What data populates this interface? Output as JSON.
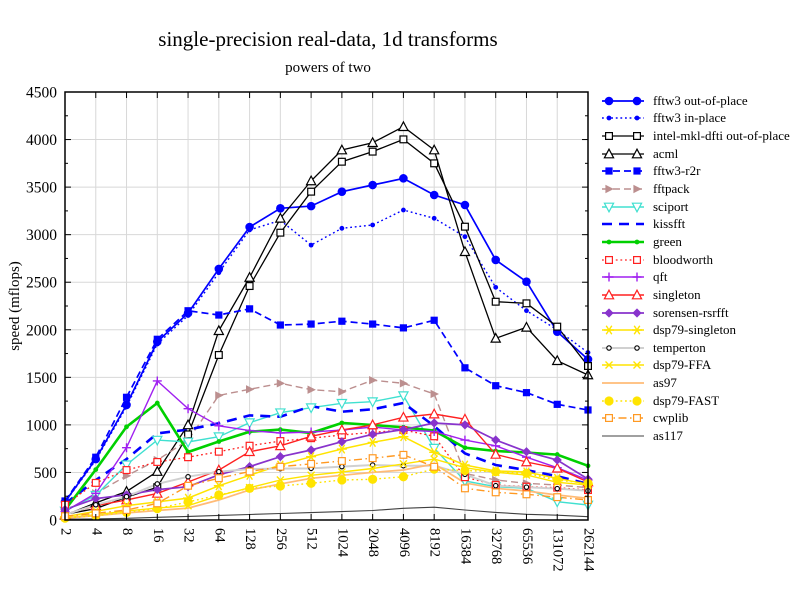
{
  "chart_data": {
    "type": "line",
    "title": "single-precision real-data, 1d transforms",
    "subtitle": "powers of two",
    "ylabel": "speed (mflops)",
    "x_categories": [
      "2",
      "4",
      "8",
      "16",
      "32",
      "64",
      "128",
      "256",
      "512",
      "1024",
      "2048",
      "4096",
      "8192",
      "16384",
      "32768",
      "65536",
      "131072",
      "262144"
    ],
    "ylim": [
      0,
      4500
    ],
    "ytick_step": 500,
    "y_minor_step": 250,
    "grid": true,
    "grid_color": "#d8d8d8",
    "legend_position": "right",
    "series": [
      {
        "name": "fftw3 out-of-place",
        "color": "#0000ff",
        "line": "solid",
        "width": 1.7,
        "marker": "circle",
        "values": [
          190,
          640,
          1210,
          1875,
          2175,
          2640,
          3080,
          3277,
          3300,
          3452,
          3522,
          3592,
          3417,
          3312,
          2734,
          2506,
          1980,
          1689
        ]
      },
      {
        "name": "fftw3 in-place",
        "color": "#0000ff",
        "line": "dotted",
        "width": 1.4,
        "marker": "circle-small",
        "values": [
          185,
          630,
          1190,
          1850,
          2150,
          2600,
          3050,
          3150,
          2890,
          3067,
          3102,
          3259,
          3172,
          2979,
          2446,
          2201,
          2000,
          1760
        ]
      },
      {
        "name": "intel-mkl-dfti out-of-place",
        "color": "#000000",
        "line": "solid",
        "width": 1.3,
        "marker": "square-open",
        "values": [
          60,
          120,
          240,
          345,
          900,
          1735,
          2460,
          3021,
          3452,
          3767,
          3873,
          4002,
          3750,
          3084,
          2295,
          2278,
          2033,
          1619
        ]
      },
      {
        "name": "acml",
        "color": "#000000",
        "line": "solid",
        "width": 1.3,
        "marker": "triangle-up-open",
        "values": [
          50,
          180,
          300,
          510,
          1000,
          1990,
          2550,
          3172,
          3565,
          3890,
          3967,
          4135,
          3890,
          2821,
          1910,
          2026,
          1675,
          1525
        ]
      },
      {
        "name": "fftw3-r2r",
        "color": "#0000ff",
        "line": "dashed",
        "width": 1.7,
        "marker": "square-filled",
        "values": [
          200,
          660,
          1290,
          1900,
          2200,
          2155,
          2220,
          2050,
          2060,
          2090,
          2060,
          2020,
          2100,
          1600,
          1412,
          1339,
          1216,
          1157
        ]
      },
      {
        "name": "fftpack",
        "color": "#bc8f8f",
        "line": "dashed",
        "width": 1.4,
        "marker": "triangle-right-filled",
        "values": [
          90,
          280,
          465,
          630,
          840,
          1310,
          1374,
          1437,
          1370,
          1349,
          1470,
          1437,
          1325,
          490,
          421,
          386,
          368,
          340
        ]
      },
      {
        "name": "sciport",
        "color": "#40e0d0",
        "line": "solid",
        "width": 1.4,
        "marker": "triangle-down-open",
        "values": [
          95,
          260,
          580,
          840,
          820,
          876,
          1023,
          1128,
          1181,
          1227,
          1244,
          1307,
          755,
          410,
          350,
          333,
          192,
          158
        ]
      },
      {
        "name": "kissfft",
        "color": "#0000ff",
        "line": "dashed-bold",
        "width": 2.6,
        "marker": "none",
        "values": [
          170,
          420,
          640,
          910,
          950,
          1017,
          1100,
          1086,
          1198,
          1139,
          1164,
          1230,
          988,
          700,
          578,
          525,
          460,
          380
        ]
      },
      {
        "name": "green",
        "color": "#00d000",
        "line": "solid",
        "width": 2.6,
        "marker": "circle-small",
        "values": [
          105,
          530,
          980,
          1230,
          715,
          825,
          928,
          950,
          915,
          1020,
          999,
          975,
          939,
          760,
          725,
          710,
          688,
          570
        ]
      },
      {
        "name": "bloodworth",
        "color": "#ff2020",
        "line": "dotted",
        "width": 1.3,
        "marker": "square-open",
        "values": [
          160,
          390,
          525,
          610,
          660,
          718,
          781,
          830,
          860,
          894,
          922,
          946,
          880,
          450,
          368,
          350,
          340,
          315
        ]
      },
      {
        "name": "qft",
        "color": "#a020f0",
        "line": "solid",
        "width": 1.4,
        "marker": "plus",
        "values": [
          90,
          280,
          760,
          1462,
          1170,
          990,
          940,
          915,
          925,
          945,
          978,
          945,
          930,
          840,
          780,
          660,
          550,
          420
        ]
      },
      {
        "name": "singleton",
        "color": "#ff2020",
        "line": "solid",
        "width": 1.4,
        "marker": "triangle-up-open",
        "values": [
          60,
          150,
          210,
          280,
          400,
          525,
          718,
          780,
          880,
          946,
          1000,
          1080,
          1114,
          1060,
          690,
          610,
          545,
          400
        ]
      },
      {
        "name": "sorensen-rsrfft",
        "color": "#8833cc",
        "line": "solid",
        "width": 1.7,
        "marker": "diamond-filled",
        "values": [
          110,
          225,
          265,
          320,
          350,
          475,
          561,
          666,
          736,
          823,
          901,
          950,
          1020,
          1000,
          841,
          718,
          631,
          430
        ]
      },
      {
        "name": "dsp79-singleton",
        "color": "#ffe400",
        "line": "solid",
        "width": 1.5,
        "marker": "asterisk",
        "values": [
          35,
          90,
          150,
          190,
          230,
          360,
          470,
          578,
          666,
          746,
          816,
          876,
          712,
          578,
          515,
          505,
          438,
          375
        ]
      },
      {
        "name": "temperton",
        "color": "#d0d0d0",
        "line": "solid",
        "width": 2.0,
        "marker": "circle-open-tiny",
        "marker_color": "#000000",
        "values": [
          55,
          160,
          245,
          380,
          455,
          508,
          536,
          540,
          543,
          561,
          578,
          571,
          570,
          480,
          361,
          345,
          330,
          308
        ]
      },
      {
        "name": "dsp79-FFA",
        "color": "#ffe400",
        "line": "solid",
        "width": 1.4,
        "marker": "cross",
        "values": [
          25,
          55,
          95,
          125,
          150,
          256,
          340,
          421,
          470,
          505,
          541,
          590,
          640,
          550,
          501,
          473,
          396,
          368
        ]
      },
      {
        "name": "as97",
        "color": "#ffbb77",
        "line": "solid",
        "width": 1.7,
        "marker": "none",
        "values": [
          20,
          45,
          75,
          100,
          125,
          210,
          315,
          380,
          438,
          470,
          500,
          526,
          590,
          390,
          333,
          305,
          263,
          228
        ]
      },
      {
        "name": "dsp79-FAST",
        "color": "#ffe400",
        "line": "dotted",
        "width": 1.4,
        "marker": "dot-big",
        "values": [
          20,
          45,
          80,
          120,
          190,
          263,
          333,
          357,
          386,
          421,
          428,
          455,
          535,
          520,
          508,
          491,
          420,
          386
        ]
      },
      {
        "name": "cwplib",
        "color": "#ff9922",
        "line": "dashdot",
        "width": 1.4,
        "marker": "square-open",
        "values": [
          40,
          70,
          105,
          175,
          360,
          440,
          510,
          560,
          590,
          620,
          650,
          685,
          560,
          333,
          291,
          270,
          240,
          210
        ]
      },
      {
        "name": "as117",
        "color": "#404040",
        "line": "solid",
        "width": 1.1,
        "marker": "none",
        "values": [
          8,
          12,
          18,
          28,
          38,
          48,
          58,
          68,
          78,
          88,
          100,
          123,
          135,
          105,
          80,
          60,
          50,
          35
        ]
      }
    ]
  }
}
